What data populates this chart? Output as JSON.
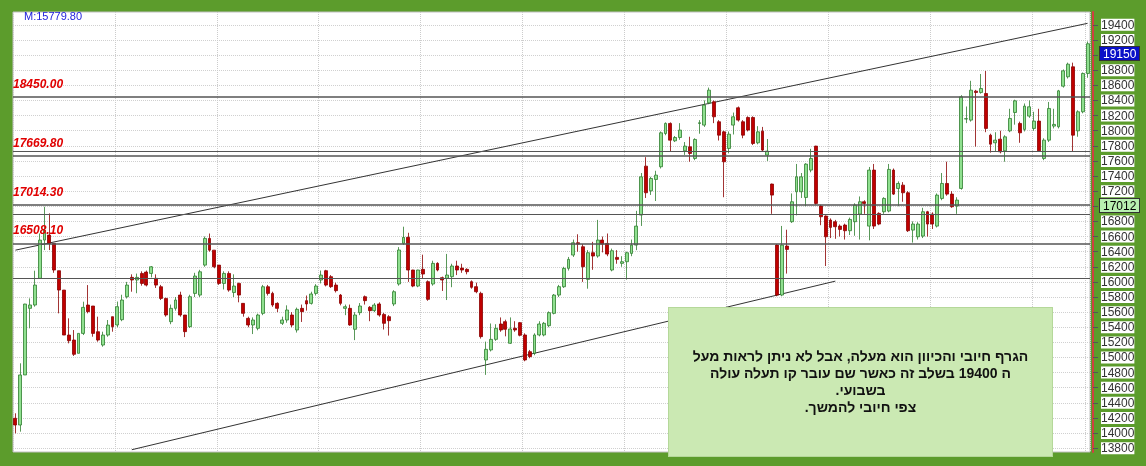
{
  "chart_data": {
    "type": "candlestick",
    "categories": [
      null,
      null,
      null,
      null,
      null,
      null,
      null,
      null,
      null,
      null,
      null,
      null,
      null,
      null,
      null,
      null,
      null,
      null,
      null,
      null,
      null,
      null,
      null,
      null,
      null,
      null,
      null,
      null,
      null,
      null,
      null,
      null,
      null,
      null,
      null,
      null,
      null,
      null,
      null,
      null,
      null,
      null,
      null,
      null,
      null,
      null,
      null,
      null,
      null,
      null,
      null,
      null,
      null,
      null,
      null,
      null,
      null,
      null,
      null,
      null,
      null,
      null,
      null,
      null,
      null,
      null,
      null,
      null,
      null,
      null,
      null,
      null,
      null,
      null,
      null,
      null,
      null,
      null,
      null,
      null,
      null,
      null,
      null,
      null,
      null,
      null,
      null,
      null,
      null,
      null,
      null,
      null,
      null,
      null,
      null,
      null,
      null,
      null,
      null,
      null,
      null,
      null,
      null,
      null,
      null,
      null,
      null,
      null,
      null,
      null,
      null,
      null,
      null,
      null,
      null,
      null,
      null,
      null,
      null,
      null,
      null,
      null,
      null,
      null,
      null,
      null,
      null,
      null,
      null,
      null,
      null,
      null,
      null,
      null,
      null,
      null,
      null,
      null,
      null,
      null,
      null,
      null,
      null,
      null,
      null,
      null,
      null,
      null,
      null,
      null,
      null,
      null,
      null,
      null,
      null,
      null,
      null,
      null,
      null,
      null,
      null,
      null,
      null,
      null,
      null,
      null,
      null,
      null,
      null,
      null,
      null,
      null,
      null,
      null,
      null,
      null,
      null,
      null,
      null,
      null,
      null,
      null,
      null,
      null,
      null,
      null,
      null,
      null,
      null,
      null,
      null,
      null,
      null,
      null,
      null,
      null,
      null,
      null,
      null,
      null,
      null,
      null,
      null,
      null,
      null,
      null,
      null,
      null,
      null,
      null,
      null,
      null,
      null,
      null,
      null,
      null,
      null,
      null,
      null,
      null,
      null,
      null
    ],
    "ohlc": [
      [
        14196,
        14262,
        13997,
        14107
      ],
      [
        14107,
        14923,
        14019,
        14769
      ],
      [
        14769,
        15710,
        14769,
        15707
      ],
      [
        15650,
        15782,
        15386,
        15695
      ],
      [
        15694,
        16148,
        15672,
        15958
      ],
      [
        16047,
        16641,
        16047,
        16553
      ],
      [
        16553,
        16994,
        16421,
        16685
      ],
      [
        16619,
        16906,
        16421,
        16509
      ],
      [
        16509,
        16509,
        16120,
        16157
      ],
      [
        16148,
        16148,
        15584,
        15892
      ],
      [
        15892,
        15892,
        15297,
        15297
      ],
      [
        15297,
        15518,
        15187,
        15222
      ],
      [
        15231,
        15363,
        15020,
        15042
      ],
      [
        15055,
        15319,
        15055,
        15319
      ],
      [
        15319,
        15738,
        15297,
        15663
      ],
      [
        15694,
        15958,
        15584,
        15606
      ],
      [
        15681,
        15681,
        15275,
        15319
      ],
      [
        15341,
        15540,
        15209,
        15231
      ],
      [
        15165,
        15341,
        15143,
        15297
      ],
      [
        15297,
        15496,
        15275,
        15429
      ],
      [
        15540,
        15540,
        15341,
        15408
      ],
      [
        15430,
        15740,
        15400,
        15672
      ],
      [
        15500,
        15830,
        15480,
        15760
      ],
      [
        15804,
        16000,
        15780,
        15958
      ],
      [
        16060,
        16100,
        15870,
        16025
      ],
      [
        16025,
        16110,
        15850,
        16060
      ],
      [
        16112,
        16140,
        15950,
        15980
      ],
      [
        16130,
        16150,
        15940,
        15958
      ],
      [
        16112,
        16210,
        16060,
        16200
      ],
      [
        16047,
        16100,
        15920,
        15958
      ],
      [
        15936,
        15960,
        15760,
        15782
      ],
      [
        15782,
        15790,
        15540,
        15562
      ],
      [
        15474,
        15700,
        15440,
        15650
      ],
      [
        15650,
        15800,
        15620,
        15760
      ],
      [
        15826,
        15870,
        15540,
        15562
      ],
      [
        15562,
        15562,
        15270,
        15342
      ],
      [
        15408,
        15830,
        15390,
        15804
      ],
      [
        15848,
        16120,
        15800,
        16077
      ],
      [
        15826,
        16160,
        15800,
        16134
      ],
      [
        16222,
        16600,
        16200,
        16575
      ],
      [
        16575,
        16640,
        16400,
        16420
      ],
      [
        16420,
        16420,
        16180,
        16200
      ],
      [
        16222,
        16222,
        15960,
        15980
      ],
      [
        15980,
        16140,
        15900,
        16112
      ],
      [
        16112,
        16140,
        15870,
        15892
      ],
      [
        15860,
        16100,
        15800,
        15945
      ],
      [
        15980,
        15990,
        15730,
        15826
      ],
      [
        15716,
        15716,
        15540,
        15584
      ],
      [
        15518,
        15540,
        15400,
        15430
      ],
      [
        15430,
        15530,
        15310,
        15496
      ],
      [
        15386,
        15580,
        15360,
        15562
      ],
      [
        15584,
        15960,
        15560,
        15936
      ],
      [
        15936,
        15960,
        15820,
        15848
      ],
      [
        15848,
        15870,
        15670,
        15694
      ],
      [
        15716,
        15730,
        15600,
        15650
      ],
      [
        15452,
        15540,
        15430,
        15496
      ],
      [
        15496,
        15690,
        15460,
        15628
      ],
      [
        15562,
        15600,
        15400,
        15430
      ],
      [
        15364,
        15660,
        15330,
        15637
      ],
      [
        15650,
        15700,
        15470,
        15606
      ],
      [
        15752,
        15820,
        15620,
        15708
      ],
      [
        15716,
        15870,
        15700,
        15840
      ],
      [
        15848,
        15970,
        15820,
        15945
      ],
      [
        16025,
        16150,
        15980,
        16090
      ],
      [
        16148,
        16160,
        15940,
        15958
      ],
      [
        16069,
        16090,
        15920,
        15937
      ],
      [
        15958,
        15990,
        15860,
        15884
      ],
      [
        15826,
        15840,
        15690,
        15716
      ],
      [
        15650,
        15700,
        15560,
        15672
      ],
      [
        15650,
        15700,
        15420,
        15430
      ],
      [
        15373,
        15600,
        15230,
        15562
      ],
      [
        15593,
        15720,
        15560,
        15681
      ],
      [
        15804,
        15820,
        15700,
        15752
      ],
      [
        15664,
        15680,
        15480,
        15620
      ],
      [
        15620,
        15720,
        15600,
        15694
      ],
      [
        15708,
        15730,
        15540,
        15562
      ],
      [
        15570,
        15590,
        15370,
        15452
      ],
      [
        15540,
        15560,
        15290,
        15487
      ],
      [
        15708,
        15890,
        15680,
        15870
      ],
      [
        15972,
        16460,
        15950,
        16422
      ],
      [
        16510,
        16730,
        16490,
        16589
      ],
      [
        16589,
        16650,
        16000,
        16157
      ],
      [
        16157,
        16160,
        15930,
        15945
      ],
      [
        15945,
        16160,
        15930,
        16157
      ],
      [
        16166,
        16360,
        16050,
        16104
      ],
      [
        16003,
        16020,
        15750,
        15769
      ],
      [
        15972,
        16280,
        15950,
        16245
      ],
      [
        16245,
        16260,
        16140,
        16157
      ],
      [
        16056,
        16070,
        15880,
        16025
      ],
      [
        16047,
        16370,
        15760,
        16091
      ],
      [
        16069,
        16240,
        15930,
        16210
      ],
      [
        16210,
        16280,
        16090,
        16157
      ],
      [
        16183,
        16240,
        16120,
        16157
      ],
      [
        16166,
        16180,
        16100,
        16135
      ],
      [
        16003,
        16020,
        15910,
        15928
      ],
      [
        15937,
        15990,
        15850,
        15870
      ],
      [
        15848,
        15870,
        15250,
        15276
      ],
      [
        14967,
        15210,
        14770,
        15108
      ],
      [
        15100,
        15450,
        15080,
        15240
      ],
      [
        15240,
        15440,
        15220,
        15386
      ],
      [
        15443,
        15530,
        15340,
        15364
      ],
      [
        15474,
        15500,
        15280,
        15373
      ],
      [
        15188,
        15530,
        15180,
        15377
      ],
      [
        15386,
        15480,
        15340,
        15364
      ],
      [
        15461,
        15470,
        15280,
        15294
      ],
      [
        15298,
        15320,
        14950,
        14967
      ],
      [
        15077,
        15100,
        14990,
        15011
      ],
      [
        15055,
        15320,
        15030,
        15298
      ],
      [
        15298,
        15480,
        15280,
        15443
      ],
      [
        15298,
        15470,
        15280,
        15452
      ],
      [
        15421,
        15610,
        15400,
        15593
      ],
      [
        15584,
        15840,
        15570,
        15826
      ],
      [
        15826,
        15960,
        15800,
        15937
      ],
      [
        15936,
        16200,
        15920,
        16179
      ],
      [
        16179,
        16330,
        16150,
        16298
      ],
      [
        16355,
        16560,
        16330,
        16518
      ],
      [
        16518,
        16630,
        16400,
        16500
      ],
      [
        16465,
        16500,
        16000,
        16201
      ],
      [
        16033,
        16420,
        15910,
        16386
      ],
      [
        16386,
        16530,
        16160,
        16342
      ],
      [
        16342,
        16820,
        16320,
        16553
      ],
      [
        16553,
        16600,
        16390,
        16500
      ],
      [
        16509,
        16640,
        16340,
        16368
      ],
      [
        16157,
        16440,
        16140,
        16412
      ],
      [
        16324,
        16420,
        16240,
        16298
      ],
      [
        16245,
        16340,
        16200,
        16267
      ],
      [
        16267,
        16400,
        16030,
        16386
      ],
      [
        16377,
        16560,
        16340,
        16487
      ],
      [
        16487,
        16940,
        16420,
        16738
      ],
      [
        16884,
        17440,
        16740,
        17390
      ],
      [
        17531,
        17650,
        17110,
        17179
      ],
      [
        17205,
        17390,
        17150,
        17368
      ],
      [
        17355,
        17470,
        17070,
        17412
      ],
      [
        17523,
        17990,
        17500,
        17972
      ],
      [
        17963,
        18110,
        17940,
        18096
      ],
      [
        18096,
        18110,
        17730,
        17875
      ],
      [
        17866,
        17930,
        17850,
        17910
      ],
      [
        17910,
        18100,
        17880,
        18008
      ],
      [
        17734,
        17850,
        17680,
        17796
      ],
      [
        17787,
        17920,
        17590,
        17699
      ],
      [
        17633,
        17900,
        17610,
        17884
      ],
      [
        18096,
        18140,
        17960,
        18105
      ],
      [
        18074,
        18400,
        18050,
        18338
      ],
      [
        18369,
        18570,
        18350,
        18536
      ],
      [
        18382,
        18400,
        18100,
        18184
      ],
      [
        18118,
        18140,
        17870,
        17941
      ],
      [
        17985,
        18000,
        17120,
        17589
      ],
      [
        17765,
        17990,
        17700,
        17954
      ],
      [
        18074,
        18240,
        17950,
        18184
      ],
      [
        18303,
        18320,
        18120,
        18140
      ],
      [
        18118,
        18140,
        17900,
        17941
      ],
      [
        18175,
        18190,
        17990,
        18008
      ],
      [
        18175,
        18190,
        17810,
        17831
      ],
      [
        17840,
        18060,
        17820,
        17985
      ],
      [
        17994,
        18050,
        17720,
        17743
      ],
      [
        17677,
        17890,
        17600,
        17730
      ],
      [
        17294,
        17300,
        16900,
        17148
      ],
      [
        16487,
        16500,
        15810,
        15826
      ],
      [
        15826,
        16740,
        15810,
        16487
      ],
      [
        16474,
        16690,
        16110,
        16430
      ],
      [
        16796,
        17170,
        16780,
        17060
      ],
      [
        17192,
        17560,
        16880,
        17390
      ],
      [
        17192,
        17440,
        17110,
        17390
      ],
      [
        17117,
        17570,
        17000,
        17558
      ],
      [
        17479,
        17760,
        17450,
        17633
      ],
      [
        17796,
        17800,
        17020,
        17038
      ],
      [
        17003,
        17020,
        16750,
        16862
      ],
      [
        16871,
        16880,
        16210,
        16597
      ],
      [
        16818,
        16840,
        16580,
        16721
      ],
      [
        16796,
        16820,
        16570,
        16730
      ],
      [
        16738,
        16760,
        16600,
        16694
      ],
      [
        16752,
        16770,
        16560,
        16677
      ],
      [
        16677,
        16850,
        16620,
        16826
      ],
      [
        16796,
        17040,
        16610,
        17016
      ],
      [
        16897,
        17130,
        16560,
        17060
      ],
      [
        17060,
        17080,
        16900,
        17038
      ],
      [
        16738,
        17520,
        16550,
        17479
      ],
      [
        17479,
        17560,
        16700,
        16738
      ],
      [
        16906,
        16920,
        16750,
        16765
      ],
      [
        16928,
        17120,
        16900,
        17104
      ],
      [
        16937,
        17560,
        16920,
        17488
      ],
      [
        17479,
        17500,
        17150,
        17161
      ],
      [
        17236,
        17330,
        17000,
        17302
      ],
      [
        17280,
        17320,
        17060,
        17179
      ],
      [
        17179,
        17200,
        16660,
        16677
      ],
      [
        16685,
        16800,
        16520,
        16765
      ],
      [
        16597,
        16790,
        16560,
        16765
      ],
      [
        16606,
        16980,
        16580,
        16928
      ],
      [
        16928,
        16940,
        16600,
        16765
      ],
      [
        16897,
        16920,
        16700,
        16765
      ],
      [
        16738,
        17170,
        16720,
        17148
      ],
      [
        17104,
        17440,
        17080,
        17302
      ],
      [
        17302,
        17590,
        17140,
        17161
      ],
      [
        17161,
        17200,
        16980,
        16994
      ],
      [
        17003,
        17120,
        16900,
        17082
      ],
      [
        17236,
        18470,
        17220,
        18448
      ],
      [
        18155,
        18320,
        18100,
        18159
      ],
      [
        18140,
        18660,
        18120,
        18536
      ],
      [
        18523,
        18540,
        17790,
        18506
      ],
      [
        18506,
        18750,
        18490,
        18558
      ],
      [
        18492,
        18790,
        17980,
        18030
      ],
      [
        17941,
        17960,
        17710,
        17822
      ],
      [
        17840,
        17980,
        17720,
        17875
      ],
      [
        17888,
        18000,
        17700,
        17721
      ],
      [
        17734,
        17940,
        17590,
        17919
      ],
      [
        17998,
        18290,
        17980,
        18162
      ],
      [
        18241,
        18410,
        18080,
        18395
      ],
      [
        18096,
        18120,
        17840,
        17972
      ],
      [
        18017,
        18360,
        17990,
        18325
      ],
      [
        18193,
        18400,
        18170,
        18316
      ],
      [
        18030,
        18250,
        18000,
        18127
      ],
      [
        18127,
        18290,
        17720,
        17734
      ],
      [
        17633,
        17900,
        17610,
        17875
      ],
      [
        17875,
        18380,
        17850,
        18294
      ],
      [
        18061,
        18290,
        18030,
        18083
      ],
      [
        18052,
        18540,
        18030,
        18527
      ],
      [
        18589,
        18810,
        18570,
        18792
      ],
      [
        18713,
        18900,
        18690,
        18880
      ],
      [
        18845,
        18900,
        17720,
        17941
      ],
      [
        17998,
        18270,
        17920,
        18250
      ],
      [
        18250,
        18770,
        18230,
        18757
      ],
      [
        18757,
        19180,
        18700,
        19150
      ]
    ],
    "series": [
      {
        "type": "line",
        "color": "#333333",
        "values": [
          16420,
          null,
          null,
          null,
          null,
          null,
          null,
          null,
          null,
          null,
          null,
          null,
          null,
          null,
          null,
          null,
          null,
          null,
          null,
          null,
          null,
          null,
          null,
          null,
          null,
          null,
          null,
          null,
          null,
          null,
          null,
          null,
          null,
          null,
          null,
          null,
          null,
          null,
          null,
          null,
          null,
          null,
          null,
          null,
          null,
          null,
          null,
          null,
          null,
          null,
          null,
          null,
          null,
          null,
          null,
          null,
          null,
          null,
          null,
          null,
          null,
          null,
          null,
          null,
          null,
          null,
          null,
          null,
          null,
          null,
          null,
          null,
          null,
          null,
          null,
          null,
          null,
          null,
          null,
          null,
          null,
          null,
          null,
          null,
          null,
          null,
          null,
          null,
          null,
          null,
          null,
          null,
          null,
          null,
          null,
          null,
          null,
          null,
          null,
          null,
          null,
          null,
          null,
          null,
          null,
          null,
          null,
          null,
          null,
          null,
          null,
          null,
          null,
          null,
          null,
          null,
          null,
          null,
          null,
          null,
          null,
          null,
          null,
          null,
          null,
          null,
          null,
          null,
          null,
          null,
          null,
          null,
          null,
          null,
          null,
          null,
          null,
          null,
          null,
          null,
          null,
          null,
          null,
          null,
          null,
          null,
          null,
          null,
          null,
          null,
          null,
          null,
          null,
          null,
          null,
          null,
          null,
          null,
          null,
          null,
          null,
          null,
          null,
          null,
          null,
          null,
          null,
          null,
          null,
          null,
          null,
          null,
          null,
          null,
          null,
          null,
          null,
          null,
          null,
          null,
          null,
          null,
          null,
          null,
          null,
          null,
          null,
          null,
          null,
          null,
          null,
          null,
          null,
          null,
          null,
          null,
          null,
          null,
          null,
          null,
          null,
          null,
          null,
          null,
          null,
          null,
          null,
          null,
          null,
          null,
          null,
          null,
          null,
          null,
          null,
          null,
          null,
          null,
          null,
          null,
          null,
          19420
        ]
      },
      {
        "type": "line",
        "color": "#333333",
        "values": [
          null,
          null,
          null,
          null,
          null,
          null,
          null,
          null,
          null,
          null,
          null,
          null,
          null,
          null,
          null,
          null,
          null,
          null,
          null,
          null,
          null,
          null,
          null,
          null,
          13780,
          null,
          null,
          null,
          null,
          null,
          null,
          null,
          null,
          null,
          null,
          null,
          null,
          null,
          null,
          null,
          null,
          null,
          null,
          null,
          null,
          null,
          null,
          null,
          null,
          null,
          null,
          null,
          null,
          null,
          null,
          null,
          null,
          null,
          null,
          null,
          null,
          null,
          null,
          null,
          null,
          null,
          null,
          null,
          null,
          null,
          null,
          null,
          null,
          null,
          null,
          null,
          null,
          null,
          null,
          null,
          null,
          null,
          null,
          null,
          null,
          null,
          null,
          null,
          null,
          null,
          null,
          null,
          null,
          null,
          null,
          null,
          null,
          null,
          null,
          null,
          null,
          null,
          null,
          null,
          null,
          null,
          null,
          null,
          null,
          null,
          null,
          null,
          null,
          null,
          null,
          null,
          null,
          null,
          null,
          null,
          null,
          null,
          null,
          null,
          null,
          null,
          null,
          null,
          null,
          null,
          null,
          null,
          null,
          null,
          null,
          null,
          null,
          null,
          null,
          null,
          null,
          null,
          null,
          null,
          null,
          null,
          null,
          null,
          null,
          null,
          null,
          null,
          null,
          null,
          null,
          null,
          null,
          null,
          null,
          null,
          null,
          null,
          null,
          null,
          null,
          null,
          null,
          null,
          null,
          16010,
          null,
          null,
          null,
          null,
          null,
          null,
          null,
          null,
          null,
          null,
          null,
          null,
          null,
          null,
          null,
          null,
          null,
          null,
          null,
          null,
          null,
          null,
          null,
          null,
          null,
          null,
          null,
          null,
          null,
          null,
          null,
          null,
          null,
          null,
          null,
          null,
          null,
          null,
          null,
          null,
          null,
          null,
          null,
          null,
          null,
          null,
          null,
          null,
          null,
          null,
          null,
          null
        ]
      }
    ],
    "ylim": [
      13750,
      19570
    ],
    "yticks": [
      13800,
      14000,
      14200,
      14400,
      14600,
      14800,
      15000,
      15200,
      15400,
      15600,
      15800,
      16000,
      16200,
      16400,
      16600,
      16800,
      {
        "value": 17000,
        "label": null
      },
      17200,
      17400,
      17600,
      17800,
      18000,
      18200,
      18400,
      18600,
      18800,
      {
        "value": 19000,
        "label": null
      },
      19200,
      19400
    ],
    "grid": true,
    "ref_lines": [
      {
        "axis": "y",
        "value": 18450,
        "label": "18450.00"
      },
      {
        "axis": "y",
        "value": 17730
      },
      {
        "axis": "y",
        "value": 17669.8,
        "label": "17669.80"
      },
      {
        "axis": "y",
        "value": 17014.3,
        "label": "17014.30"
      },
      {
        "axis": "y",
        "value": 16900
      },
      {
        "axis": "y",
        "value": 16508.1,
        "label": "16508.10"
      },
      {
        "axis": "y",
        "value": 16050
      }
    ],
    "annotations": [
      "M:15779.80",
      "הגרף חיובי והכיוון הוא מעלה, אבל לא ניתן לראות מעל ה 19400 בשלב זה כאשר שם עובר קו תעלה עולה בשבועי.\nצפי חיובי להמשך.",
      "19150",
      "17012"
    ]
  }
}
